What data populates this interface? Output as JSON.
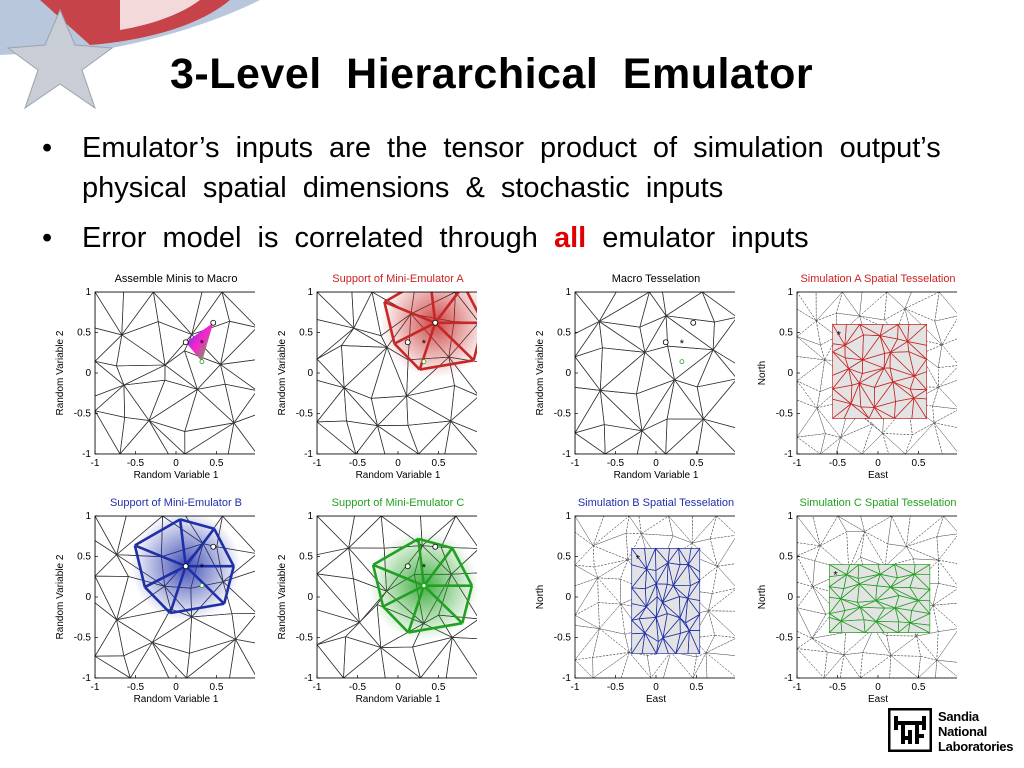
{
  "slide": {
    "title": "3-Level  Hierarchical  Emulator",
    "bullets": [
      {
        "dot": "•",
        "text": "Emulator’s  inputs  are  the  tensor  product  of  simulation  output’s  physical  spatial  dimensions  &  stochastic  inputs"
      },
      {
        "dot": "•",
        "pre": "Error  model  is  correlated  through ",
        "highlight": "all",
        "post": " emulator  inputs"
      }
    ],
    "highlight_color": "#e00000"
  },
  "panels": [
    {
      "title": "Assemble Minis to Macro",
      "title_color": "#000000",
      "xlabel": "Random Variable 1",
      "ylabel": "Random Variable 2",
      "xticks": [
        "-1",
        "-0.5",
        "0",
        "0.5",
        "1"
      ],
      "yticks": [
        "1",
        "0.5",
        "0",
        "-0.5",
        "-1"
      ],
      "style": "macro-colored"
    },
    {
      "title": "Support of Mini-Emulator A",
      "title_color": "#cc2222",
      "xlabel": "Random Variable 1",
      "ylabel": "Random Variable 2",
      "xticks": [
        "-1",
        "-0.5",
        "0",
        "0.5",
        "1"
      ],
      "yticks": [
        "1",
        "0.5",
        "0",
        "-0.5",
        "-1"
      ],
      "style": "support-red"
    },
    {
      "title": "Macro Tesselation",
      "title_color": "#000000",
      "xlabel": "Random Variable 1",
      "ylabel": "Random Variable 2",
      "xticks": [
        "-1",
        "-0.5",
        "0",
        "0.5",
        "1"
      ],
      "yticks": [
        "1",
        "0.5",
        "0",
        "-0.5",
        "-1"
      ],
      "style": "macro"
    },
    {
      "title": "Simulation A Spatial Tesselation",
      "title_color": "#cc2222",
      "xlabel": "East",
      "ylabel": "North",
      "xticks": [
        "-1",
        "-0.5",
        "0",
        "0.5",
        "1"
      ],
      "yticks": [
        "1",
        "0.5",
        "0",
        "-0.5",
        "-1"
      ],
      "style": "spatial-red"
    },
    {
      "title": "Support of Mini-Emulator B",
      "title_color": "#1f2fa8",
      "xlabel": "Random Variable 1",
      "ylabel": "Random Variable 2",
      "xticks": [
        "-1",
        "-0.5",
        "0",
        "0.5",
        "1"
      ],
      "yticks": [
        "1",
        "0.5",
        "0",
        "-0.5",
        "-1"
      ],
      "style": "support-blue"
    },
    {
      "title": "Support of Mini-Emulator C",
      "title_color": "#22a022",
      "xlabel": "Random Variable 1",
      "ylabel": "Random Variable 2",
      "xticks": [
        "-1",
        "-0.5",
        "0",
        "0.5",
        "1"
      ],
      "yticks": [
        "1",
        "0.5",
        "0",
        "-0.5",
        "-1"
      ],
      "style": "support-green"
    },
    {
      "title": "Simulation B Spatial Tesselation",
      "title_color": "#1f2fa8",
      "xlabel": "East",
      "ylabel": "North",
      "xticks": [
        "-1",
        "-0.5",
        "0",
        "0.5",
        "1"
      ],
      "yticks": [
        "1",
        "0.5",
        "0",
        "-0.5",
        "-1"
      ],
      "style": "spatial-blue"
    },
    {
      "title": "Simulation C Spatial Tesselation",
      "title_color": "#22a022",
      "xlabel": "East",
      "ylabel": "North",
      "xticks": [
        "-1",
        "-0.5",
        "0",
        "0.5",
        "1"
      ],
      "yticks": [
        "1",
        "0.5",
        "0",
        "-0.5",
        "-1"
      ],
      "style": "spatial-green"
    }
  ],
  "logo": {
    "line1": "Sandia",
    "line2": "National",
    "line3": "Laboratories",
    "icon": "sandia-thunderbird-icon"
  }
}
